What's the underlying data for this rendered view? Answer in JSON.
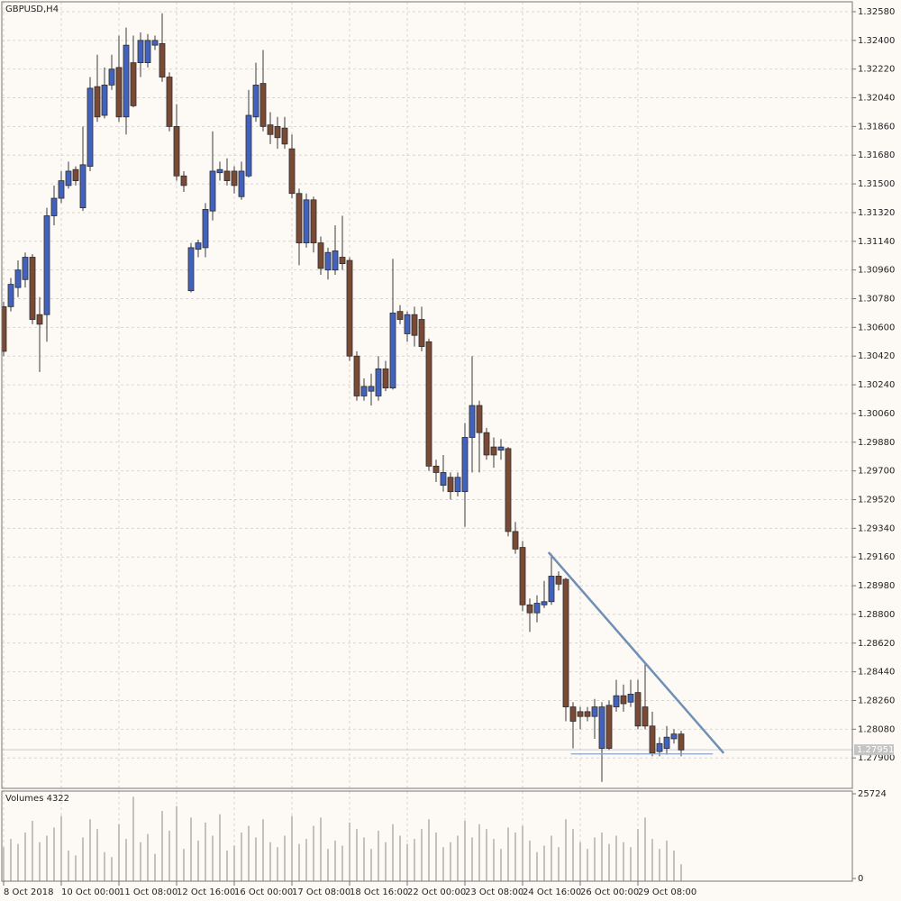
{
  "chart_data": {
    "type": "candlestick",
    "title": "GBPUSD,H4",
    "volume_title": "Volumes 4322",
    "categories": [
      "8 Oct 2018",
      null,
      null,
      null,
      null,
      null,
      null,
      null,
      "10 Oct 00:00",
      null,
      null,
      null,
      null,
      null,
      null,
      null,
      "11 Oct 08:00",
      null,
      null,
      null,
      null,
      null,
      null,
      null,
      "12 Oct 16:00",
      null,
      null,
      null,
      null,
      null,
      null,
      null,
      "16 Oct 00:00",
      null,
      null,
      null,
      null,
      null,
      null,
      null,
      "17 Oct 08:00",
      null,
      null,
      null,
      null,
      null,
      null,
      null,
      "18 Oct 16:00",
      null,
      null,
      null,
      null,
      null,
      null,
      null,
      "22 Oct 00:00",
      null,
      null,
      null,
      null,
      null,
      null,
      null,
      "23 Oct 08:00",
      null,
      null,
      null,
      null,
      null,
      null,
      null,
      "24 Oct 16:00",
      null,
      null,
      null,
      null,
      null,
      null,
      null,
      "26 Oct 00:00",
      null,
      null,
      null,
      null,
      null,
      null,
      null,
      "29 Oct 08:00",
      null,
      null,
      null,
      null,
      null,
      null
    ],
    "open": [
      1.3073,
      1.3073,
      1.3085,
      1.309,
      1.3104,
      1.3068,
      1.3068,
      1.313,
      1.3141,
      1.3149,
      1.3159,
      1.3135,
      1.3161,
      1.3211,
      1.3193,
      1.3212,
      1.3223,
      1.3192,
      1.3226,
      1.3226,
      1.3226,
      1.3237,
      1.3238,
      1.3217,
      1.3186,
      1.3155,
      1.3083,
      1.3109,
      1.311,
      1.3133,
      1.3157,
      1.3158,
      1.3158,
      1.3142,
      1.3155,
      1.3192,
      1.3213,
      1.3187,
      1.3186,
      1.3185,
      1.3172,
      1.3144,
      1.3113,
      1.314,
      1.3113,
      1.3096,
      1.3096,
      1.3104,
      1.3102,
      1.3042,
      1.3017,
      1.302,
      1.3017,
      1.3034,
      1.3022,
      1.307,
      1.3056,
      1.3068,
      1.3065,
      1.3051,
      1.2973,
      1.2961,
      1.2966,
      1.2957,
      1.2957,
      1.2991,
      1.3011,
      1.2994,
      1.2985,
      1.2983,
      1.2984,
      1.2932,
      1.2922,
      1.2886,
      1.2881,
      1.2886,
      1.2888,
      1.2904,
      1.2902,
      1.2822,
      1.2819,
      1.2819,
      1.2816,
      1.2796,
      1.2823,
      1.2822,
      1.2829,
      1.2825,
      1.2831,
      1.2822,
      1.281,
      1.2794,
      1.2796,
      1.2802,
      1.2805
    ],
    "high": [
      1.3076,
      1.3091,
      1.3102,
      1.3107,
      1.3106,
      1.3079,
      1.3135,
      1.3149,
      1.3158,
      1.3164,
      1.3161,
      1.3186,
      1.3217,
      1.3231,
      1.3223,
      1.3231,
      1.3243,
      1.3248,
      1.3243,
      1.3245,
      1.3244,
      1.3243,
      1.3257,
      1.322,
      1.32,
      1.3158,
      1.3113,
      1.3115,
      1.3138,
      1.3183,
      1.3164,
      1.3166,
      1.3161,
      1.3164,
      1.3209,
      1.3226,
      1.3234,
      1.3195,
      1.3192,
      1.3192,
      1.3181,
      1.3147,
      1.3144,
      1.3142,
      1.3117,
      1.311,
      1.3124,
      1.313,
      1.3104,
      1.3045,
      1.3028,
      1.3031,
      1.3042,
      1.3039,
      1.3103,
      1.3074,
      1.307,
      1.3073,
      1.3073,
      1.3053,
      1.2977,
      1.298,
      1.2969,
      1.2969,
      1.3,
      1.3042,
      1.3014,
      1.2997,
      1.2991,
      1.299,
      1.2985,
      1.2938,
      1.2926,
      1.289,
      1.2892,
      1.2901,
      1.2918,
      1.2907,
      1.2903,
      1.2825,
      1.2822,
      1.2822,
      1.2827,
      1.2825,
      1.2826,
      1.2839,
      1.2836,
      1.2839,
      1.2839,
      1.285,
      1.2819,
      1.2803,
      1.281,
      1.2808,
      1.2807
    ],
    "low": [
      1.3042,
      1.307,
      1.3079,
      1.3085,
      1.3062,
      1.3032,
      1.3051,
      1.3124,
      1.3138,
      1.3147,
      1.3149,
      1.3133,
      1.3158,
      1.3189,
      1.3191,
      1.3209,
      1.3189,
      1.3181,
      1.3198,
      1.3217,
      1.3223,
      1.3234,
      1.3214,
      1.3183,
      1.3152,
      1.3145,
      1.3082,
      1.3104,
      1.3104,
      1.3127,
      1.3152,
      1.3149,
      1.3144,
      1.314,
      1.3154,
      1.3189,
      1.3183,
      1.3175,
      1.3172,
      1.3172,
      1.3141,
      1.3099,
      1.311,
      1.3107,
      1.3093,
      1.309,
      1.3093,
      1.3096,
      1.3039,
      1.3014,
      1.3014,
      1.3011,
      1.3014,
      1.302,
      1.3021,
      1.3062,
      1.3051,
      1.3048,
      1.3045,
      1.297,
      1.2963,
      1.2957,
      1.2952,
      1.2954,
      1.2935,
      1.2969,
      1.2969,
      1.2977,
      1.2972,
      1.2977,
      1.2929,
      1.2918,
      1.2882,
      1.2869,
      1.2875,
      1.2884,
      1.2886,
      1.2895,
      1.2813,
      1.2796,
      1.2808,
      1.2813,
      1.2802,
      1.2775,
      1.2795,
      1.2819,
      1.2819,
      1.2822,
      1.2808,
      1.2808,
      1.2791,
      1.2791,
      1.2792,
      1.2799,
      1.2791
    ],
    "close": [
      1.3045,
      1.3087,
      1.3096,
      1.3104,
      1.3065,
      1.3062,
      1.313,
      1.3141,
      1.3152,
      1.3158,
      1.3152,
      1.3162,
      1.321,
      1.3192,
      1.3212,
      1.3222,
      1.3192,
      1.3237,
      1.3199,
      1.324,
      1.324,
      1.324,
      1.3217,
      1.3186,
      1.3155,
      1.3149,
      1.311,
      1.3113,
      1.3134,
      1.3158,
      1.3159,
      1.3152,
      1.3149,
      1.3158,
      1.3193,
      1.3212,
      1.3186,
      1.3181,
      1.3179,
      1.3175,
      1.3144,
      1.3113,
      1.314,
      1.3113,
      1.3097,
      1.3107,
      1.3108,
      1.31,
      1.3042,
      1.3017,
      1.3023,
      1.3023,
      1.3034,
      1.3022,
      1.3069,
      1.3065,
      1.3068,
      1.3055,
      1.3048,
      1.2973,
      1.2969,
      1.2969,
      1.2957,
      1.2966,
      1.2991,
      1.3011,
      1.2994,
      1.298,
      1.298,
      1.2985,
      1.2932,
      1.2921,
      1.2886,
      1.2881,
      1.2887,
      1.2888,
      1.2904,
      1.2899,
      1.2822,
      1.2813,
      1.2816,
      1.2816,
      1.2822,
      1.2822,
      1.2796,
      1.2829,
      1.2824,
      1.283,
      1.281,
      1.281,
      1.2793,
      1.2799,
      1.2803,
      1.2805,
      1.2795
    ],
    "volumes": [
      9500,
      12000,
      10500,
      14000,
      17500,
      11000,
      13000,
      15500,
      19000,
      8500,
      7000,
      12500,
      18000,
      15000,
      8000,
      6500,
      16500,
      12000,
      24800,
      11000,
      13500,
      7500,
      20500,
      14500,
      22000,
      9000,
      18500,
      11500,
      17000,
      13000,
      19500,
      8500,
      10000,
      14000,
      16000,
      12500,
      18000,
      11000,
      9500,
      13000,
      19000,
      10500,
      12000,
      16000,
      18500,
      9000,
      11500,
      10000,
      17000,
      15000,
      12500,
      9000,
      14500,
      11000,
      16500,
      13000,
      10500,
      12000,
      15000,
      18000,
      14000,
      9500,
      11000,
      13000,
      17500,
      12500,
      16500,
      15000,
      12000,
      9000,
      15500,
      14000,
      16000,
      11500,
      8000,
      10000,
      13000,
      9500,
      18000,
      15000,
      11000,
      9000,
      12500,
      14000,
      10500,
      13000,
      11000,
      9500,
      15000,
      18500,
      12000,
      9000,
      11500,
      8500,
      4322
    ],
    "bull_color": "#4262bd",
    "bear_color": "#7b4a37",
    "ylim": [
      1.27709,
      1.32642
    ],
    "yticks": [
      {
        "value": 1.3258,
        "label": "1.32580"
      },
      {
        "value": 1.324,
        "label": "1.32400"
      },
      {
        "value": 1.3222,
        "label": "1.32220"
      },
      {
        "value": 1.3204,
        "label": "1.32040"
      },
      {
        "value": 1.3186,
        "label": "1.31860"
      },
      {
        "value": 1.3168,
        "label": "1.31680"
      },
      {
        "value": 1.315,
        "label": "1.31500"
      },
      {
        "value": 1.3132,
        "label": "1.31320"
      },
      {
        "value": 1.3114,
        "label": "1.31140"
      },
      {
        "value": 1.3096,
        "label": "1.30960"
      },
      {
        "value": 1.3078,
        "label": "1.30780"
      },
      {
        "value": 1.306,
        "label": "1.30600"
      },
      {
        "value": 1.3042,
        "label": "1.30420"
      },
      {
        "value": 1.3024,
        "label": "1.30240"
      },
      {
        "value": 1.3006,
        "label": "1.30060"
      },
      {
        "value": 1.2988,
        "label": "1.29880"
      },
      {
        "value": 1.297,
        "label": "1.29700"
      },
      {
        "value": 1.2952,
        "label": "1.29520"
      },
      {
        "value": 1.2934,
        "label": "1.29340"
      },
      {
        "value": 1.2916,
        "label": "1.29160"
      },
      {
        "value": 1.2898,
        "label": "1.28980"
      },
      {
        "value": 1.288,
        "label": "1.28800"
      },
      {
        "value": 1.2862,
        "label": "1.28620"
      },
      {
        "value": 1.2844,
        "label": "1.28440"
      },
      {
        "value": 1.2826,
        "label": "1.28260"
      },
      {
        "value": 1.2808,
        "label": "1.28080"
      },
      {
        "value": 1.279,
        "label": "1.27900"
      }
    ],
    "y2lim": [
      0,
      25724
    ],
    "y2ticks": [
      0,
      25724
    ],
    "last_price": {
      "value": 1.27951,
      "label": "1.27951"
    },
    "trendlines": [
      {
        "color": "#6f8fb6",
        "x": [
          75.6,
          99.9
        ],
        "y": [
          1.2919,
          1.2793
        ]
      },
      {
        "color": "#8aa6c8",
        "x": [
          78.7,
          98.4
        ],
        "y": [
          1.27925,
          1.27925
        ]
      }
    ],
    "grid": true
  }
}
